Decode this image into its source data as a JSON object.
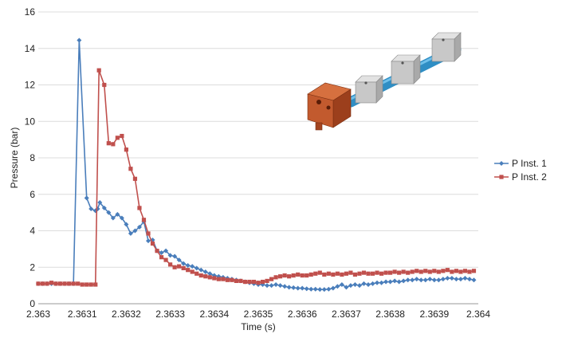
{
  "chart_data": {
    "type": "line",
    "title": "",
    "xlabel": "Time (s)",
    "ylabel": "Pressure (bar)",
    "xlim": [
      2.363,
      2.364
    ],
    "ylim": [
      0,
      16
    ],
    "x_ticks": [
      "2.363",
      "2.3631",
      "2.3632",
      "2.3633",
      "2.3634",
      "2.3635",
      "2.3636",
      "2.3637",
      "2.3638",
      "2.3639",
      "2.364"
    ],
    "y_ticks": [
      "0",
      "2",
      "4",
      "6",
      "8",
      "10",
      "12",
      "14",
      "16"
    ],
    "grid": "horizontal",
    "legend_position": "right",
    "series": [
      {
        "name": "P Inst. 1",
        "color": "#4a7ebb",
        "marker": "diamond",
        "points": [
          [
            2.363,
            1.1
          ],
          [
            2.36301,
            1.1
          ],
          [
            2.36302,
            1.1
          ],
          [
            2.36303,
            1.1
          ],
          [
            2.36304,
            1.1
          ],
          [
            2.36305,
            1.1
          ],
          [
            2.36306,
            1.1
          ],
          [
            2.36307,
            1.1
          ],
          [
            2.36308,
            1.1
          ],
          [
            2.363093,
            14.45
          ],
          [
            2.36311,
            5.8
          ],
          [
            2.36312,
            5.2
          ],
          [
            2.36313,
            5.1
          ],
          [
            2.363135,
            5.2
          ],
          [
            2.36314,
            5.55
          ],
          [
            2.36315,
            5.25
          ],
          [
            2.36316,
            5.0
          ],
          [
            2.36317,
            4.7
          ],
          [
            2.36318,
            4.9
          ],
          [
            2.36319,
            4.7
          ],
          [
            2.3632,
            4.35
          ],
          [
            2.36321,
            3.85
          ],
          [
            2.36322,
            4.0
          ],
          [
            2.36323,
            4.2
          ],
          [
            2.36324,
            4.5
          ],
          [
            2.36325,
            3.45
          ],
          [
            2.36326,
            3.5
          ],
          [
            2.36327,
            2.9
          ],
          [
            2.36328,
            2.8
          ],
          [
            2.36329,
            2.9
          ],
          [
            2.3633,
            2.65
          ],
          [
            2.36331,
            2.6
          ],
          [
            2.36332,
            2.4
          ],
          [
            2.36333,
            2.2
          ],
          [
            2.36334,
            2.1
          ],
          [
            2.36335,
            2.05
          ],
          [
            2.36336,
            1.95
          ],
          [
            2.36337,
            1.85
          ],
          [
            2.36338,
            1.75
          ],
          [
            2.36339,
            1.65
          ],
          [
            2.3634,
            1.55
          ],
          [
            2.36341,
            1.5
          ],
          [
            2.36342,
            1.45
          ],
          [
            2.36343,
            1.4
          ],
          [
            2.36344,
            1.35
          ],
          [
            2.36345,
            1.3
          ],
          [
            2.36346,
            1.25
          ],
          [
            2.36347,
            1.2
          ],
          [
            2.36348,
            1.15
          ],
          [
            2.36349,
            1.1
          ],
          [
            2.3635,
            1.05
          ],
          [
            2.36351,
            1.05
          ],
          [
            2.36352,
            1.0
          ],
          [
            2.36353,
            1.0
          ],
          [
            2.36354,
            1.05
          ],
          [
            2.36355,
            1.0
          ],
          [
            2.36356,
            0.95
          ],
          [
            2.36357,
            0.9
          ],
          [
            2.36358,
            0.88
          ],
          [
            2.36359,
            0.85
          ],
          [
            2.3636,
            0.85
          ],
          [
            2.36361,
            0.82
          ],
          [
            2.36362,
            0.8
          ],
          [
            2.36363,
            0.8
          ],
          [
            2.36364,
            0.78
          ],
          [
            2.36365,
            0.78
          ],
          [
            2.36366,
            0.8
          ],
          [
            2.36367,
            0.85
          ],
          [
            2.36368,
            0.95
          ],
          [
            2.36369,
            1.05
          ],
          [
            2.3637,
            0.9
          ],
          [
            2.36371,
            1.0
          ],
          [
            2.36372,
            1.05
          ],
          [
            2.36373,
            1.0
          ],
          [
            2.36374,
            1.1
          ],
          [
            2.36375,
            1.05
          ],
          [
            2.36376,
            1.1
          ],
          [
            2.36377,
            1.15
          ],
          [
            2.36378,
            1.15
          ],
          [
            2.36379,
            1.2
          ],
          [
            2.3638,
            1.2
          ],
          [
            2.36381,
            1.25
          ],
          [
            2.36382,
            1.2
          ],
          [
            2.36383,
            1.25
          ],
          [
            2.36384,
            1.3
          ],
          [
            2.36385,
            1.3
          ],
          [
            2.36386,
            1.35
          ],
          [
            2.36387,
            1.3
          ],
          [
            2.36388,
            1.3
          ],
          [
            2.36389,
            1.35
          ],
          [
            2.3639,
            1.3
          ],
          [
            2.36391,
            1.3
          ],
          [
            2.36392,
            1.35
          ],
          [
            2.36393,
            1.4
          ],
          [
            2.36394,
            1.4
          ],
          [
            2.36395,
            1.35
          ],
          [
            2.36396,
            1.35
          ],
          [
            2.36397,
            1.4
          ],
          [
            2.36398,
            1.35
          ],
          [
            2.36399,
            1.3
          ]
        ]
      },
      {
        "name": "P Inst. 2",
        "color": "#c0504d",
        "marker": "square",
        "points": [
          [
            2.363,
            1.1
          ],
          [
            2.36301,
            1.1
          ],
          [
            2.36302,
            1.1
          ],
          [
            2.36303,
            1.15
          ],
          [
            2.36304,
            1.1
          ],
          [
            2.36305,
            1.1
          ],
          [
            2.36306,
            1.1
          ],
          [
            2.36307,
            1.1
          ],
          [
            2.36308,
            1.1
          ],
          [
            2.36309,
            1.1
          ],
          [
            2.3631,
            1.05
          ],
          [
            2.36311,
            1.05
          ],
          [
            2.36312,
            1.05
          ],
          [
            2.36313,
            1.05
          ],
          [
            2.363138,
            12.8
          ],
          [
            2.36315,
            12.0
          ],
          [
            2.36316,
            8.8
          ],
          [
            2.36317,
            8.75
          ],
          [
            2.36318,
            9.1
          ],
          [
            2.36319,
            9.2
          ],
          [
            2.3632,
            8.45
          ],
          [
            2.36321,
            7.4
          ],
          [
            2.36322,
            6.85
          ],
          [
            2.36323,
            5.25
          ],
          [
            2.36324,
            4.6
          ],
          [
            2.36325,
            3.85
          ],
          [
            2.36326,
            3.3
          ],
          [
            2.36327,
            2.9
          ],
          [
            2.36328,
            2.55
          ],
          [
            2.36329,
            2.4
          ],
          [
            2.3633,
            2.15
          ],
          [
            2.36331,
            2.0
          ],
          [
            2.36332,
            2.05
          ],
          [
            2.36333,
            1.95
          ],
          [
            2.36334,
            1.85
          ],
          [
            2.36335,
            1.75
          ],
          [
            2.36336,
            1.65
          ],
          [
            2.36337,
            1.55
          ],
          [
            2.36338,
            1.5
          ],
          [
            2.36339,
            1.45
          ],
          [
            2.3634,
            1.4
          ],
          [
            2.36341,
            1.35
          ],
          [
            2.36342,
            1.35
          ],
          [
            2.36343,
            1.3
          ],
          [
            2.36344,
            1.3
          ],
          [
            2.36345,
            1.25
          ],
          [
            2.36346,
            1.25
          ],
          [
            2.36347,
            1.2
          ],
          [
            2.36348,
            1.2
          ],
          [
            2.36349,
            1.2
          ],
          [
            2.3635,
            1.15
          ],
          [
            2.36351,
            1.2
          ],
          [
            2.36352,
            1.25
          ],
          [
            2.36353,
            1.35
          ],
          [
            2.36354,
            1.45
          ],
          [
            2.36355,
            1.5
          ],
          [
            2.36356,
            1.55
          ],
          [
            2.36357,
            1.5
          ],
          [
            2.36358,
            1.55
          ],
          [
            2.36359,
            1.6
          ],
          [
            2.3636,
            1.55
          ],
          [
            2.36361,
            1.55
          ],
          [
            2.36362,
            1.6
          ],
          [
            2.36363,
            1.65
          ],
          [
            2.36364,
            1.7
          ],
          [
            2.36365,
            1.6
          ],
          [
            2.36366,
            1.65
          ],
          [
            2.36367,
            1.6
          ],
          [
            2.36368,
            1.65
          ],
          [
            2.36369,
            1.6
          ],
          [
            2.3637,
            1.65
          ],
          [
            2.36371,
            1.7
          ],
          [
            2.36372,
            1.6
          ],
          [
            2.36373,
            1.65
          ],
          [
            2.36374,
            1.7
          ],
          [
            2.36375,
            1.65
          ],
          [
            2.36376,
            1.65
          ],
          [
            2.36377,
            1.7
          ],
          [
            2.36378,
            1.65
          ],
          [
            2.36379,
            1.7
          ],
          [
            2.3638,
            1.7
          ],
          [
            2.36381,
            1.75
          ],
          [
            2.36382,
            1.7
          ],
          [
            2.36383,
            1.75
          ],
          [
            2.36384,
            1.7
          ],
          [
            2.36385,
            1.75
          ],
          [
            2.36386,
            1.8
          ],
          [
            2.36387,
            1.75
          ],
          [
            2.36388,
            1.8
          ],
          [
            2.36389,
            1.75
          ],
          [
            2.3639,
            1.8
          ],
          [
            2.36391,
            1.75
          ],
          [
            2.36392,
            1.8
          ],
          [
            2.36393,
            1.85
          ],
          [
            2.36394,
            1.75
          ],
          [
            2.36395,
            1.8
          ],
          [
            2.36396,
            1.75
          ],
          [
            2.36397,
            1.8
          ],
          [
            2.36398,
            1.75
          ],
          [
            2.36399,
            1.8
          ]
        ]
      }
    ],
    "inset": {
      "name": "pipe-assembly-illustration",
      "body_color": "#c25a2e",
      "flange_color": "#c8c8c8",
      "pipe_color": "#2f8ec4"
    }
  }
}
